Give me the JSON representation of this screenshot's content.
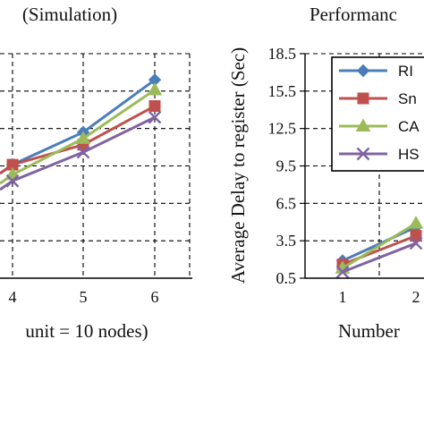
{
  "chart_data": [
    {
      "type": "line",
      "title": "(Simulation)",
      "xlabel": "unit = 10 nodes)",
      "ylabel": "",
      "x": [
        4,
        5,
        6
      ],
      "x_ticks": [
        "4",
        "5",
        "6"
      ],
      "grid": true,
      "series": [
        {
          "name": "",
          "color": "#4a7ebb",
          "marker": "diamond",
          "values": [
            9.6,
            12.2,
            16.4
          ]
        },
        {
          "name": "",
          "color": "#c0504d",
          "marker": "square",
          "values": [
            9.6,
            11.2,
            14.3
          ]
        },
        {
          "name": "",
          "color": "#9bbb59",
          "marker": "triangle",
          "values": [
            8.8,
            11.7,
            15.6
          ]
        },
        {
          "name": "",
          "color": "#8064a2",
          "marker": "x",
          "values": [
            8.3,
            10.6,
            13.4
          ]
        }
      ]
    },
    {
      "type": "line",
      "title": "Performanc",
      "xlabel": "Number",
      "ylabel": "Average Delay to register (Sec)",
      "x": [
        1,
        2
      ],
      "x_ticks": [
        "1",
        "2"
      ],
      "y_ticks": [
        "0.5",
        "3.5",
        "6.5",
        "9.5",
        "12.5",
        "15.5",
        "18.5"
      ],
      "ylim": [
        0.5,
        18.5
      ],
      "grid": true,
      "legend_position": "top-right",
      "series": [
        {
          "name": "RI",
          "color": "#4a7ebb",
          "marker": "diamond",
          "values": [
            1.9,
            4.6
          ]
        },
        {
          "name": "Sn",
          "color": "#c0504d",
          "marker": "square",
          "values": [
            1.6,
            3.9
          ]
        },
        {
          "name": "CA",
          "color": "#9bbb59",
          "marker": "triangle",
          "values": [
            1.3,
            4.9
          ]
        },
        {
          "name": "HS",
          "color": "#8064a2",
          "marker": "x",
          "values": [
            1.0,
            3.3
          ]
        }
      ]
    }
  ]
}
